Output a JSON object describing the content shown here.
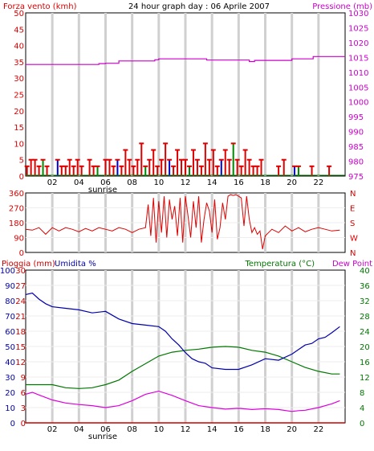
{
  "colors": {
    "wind": "#dd0000",
    "wind_alt_green": "#008800",
    "wind_alt_blue": "#0000cc",
    "pressure": "#cc00cc",
    "direction": "#dd0000",
    "humidity": "#0000aa",
    "temperature": "#007700",
    "dewpoint": "#dd00dd",
    "rain": "#cc0000",
    "grid": "#d0d0d0",
    "frame": "#000000"
  },
  "chart_data": [
    {
      "type": "bar+line",
      "title": "24 hour graph day : 06 Aprile 2007",
      "left_label": "Forza vento (kmh)",
      "right_label": "Pressione (mb)",
      "x_ticks": [
        "02",
        "04",
        "06",
        "08",
        "10",
        "12",
        "14",
        "16",
        "18",
        "20",
        "22"
      ],
      "x_marker": "sunrise",
      "x_range": [
        0,
        24
      ],
      "ylim_left": [
        0,
        50
      ],
      "ylim_right": [
        975,
        1030
      ],
      "left_ticks": [
        "0",
        "5",
        "10",
        "15",
        "20",
        "25",
        "30",
        "35",
        "40",
        "45",
        "50"
      ],
      "right_ticks": [
        "975",
        "980",
        "985",
        "990",
        "995",
        "1000",
        "1005",
        "1010",
        "1015",
        "1020",
        "1025",
        "1030"
      ],
      "pressure_series": {
        "x": [
          0,
          5.5,
          5.5,
          6.0,
          6.0,
          7.0,
          7.0,
          9.7,
          9.7,
          10.0,
          10.0,
          13.6,
          13.6,
          16.8,
          16.8,
          17.2,
          17.2,
          20.0,
          20.0,
          21.6,
          21.6,
          24.0
        ],
        "y": [
          1012.6,
          1012.6,
          1012.9,
          1012.9,
          1013.0,
          1013.0,
          1013.8,
          1013.8,
          1014.2,
          1014.2,
          1014.5,
          1014.5,
          1014.1,
          1014.1,
          1013.6,
          1013.6,
          1014.0,
          1014.0,
          1014.5,
          1014.5,
          1015.3,
          1015.3
        ]
      },
      "wind_speed": {
        "x": [
          0.1,
          0.4,
          0.7,
          1.0,
          1.3,
          1.6,
          2.4,
          2.7,
          3.0,
          3.3,
          3.6,
          3.9,
          4.2,
          4.8,
          5.1,
          5.4,
          6.0,
          6.3,
          6.6,
          6.9,
          7.2,
          7.5,
          7.8,
          8.1,
          8.4,
          8.7,
          9.0,
          9.3,
          9.6,
          9.9,
          10.2,
          10.5,
          10.8,
          11.1,
          11.4,
          11.7,
          12.0,
          12.3,
          12.6,
          12.9,
          13.2,
          13.5,
          13.8,
          14.1,
          14.4,
          14.7,
          15.0,
          15.3,
          15.6,
          15.9,
          16.2,
          16.5,
          16.8,
          17.1,
          17.4,
          17.7,
          19.0,
          19.4,
          20.2,
          20.5,
          21.5,
          22.8
        ],
        "y": [
          3,
          5,
          5,
          3,
          5,
          3,
          5,
          3,
          3,
          5,
          3,
          5,
          3,
          5,
          3,
          3,
          5,
          5,
          3,
          5,
          3,
          8,
          5,
          3,
          5,
          10,
          3,
          5,
          8,
          3,
          5,
          10,
          5,
          3,
          8,
          5,
          5,
          3,
          8,
          5,
          3,
          10,
          5,
          8,
          3,
          5,
          8,
          5,
          10,
          5,
          3,
          8,
          5,
          3,
          3,
          5,
          3,
          5,
          3,
          3,
          3,
          3
        ]
      }
    },
    {
      "type": "line",
      "left_label": "",
      "right_label": "N W S E N",
      "right_ticks": [
        "N",
        "W",
        "S",
        "E",
        "N"
      ],
      "left_ticks": [
        "0",
        "90",
        "180",
        "270",
        "360"
      ],
      "x_ticks": [
        "02",
        "04",
        "06",
        "08",
        "10",
        "12",
        "14",
        "16",
        "18",
        "20",
        "22"
      ],
      "ylim": [
        0,
        360
      ],
      "x_range": [
        0,
        24
      ],
      "direction": {
        "x": [
          0,
          0.5,
          1.0,
          1.5,
          2.0,
          2.5,
          3.0,
          3.5,
          4.0,
          4.5,
          5.0,
          5.5,
          6.0,
          6.5,
          7.0,
          7.5,
          8.0,
          8.5,
          9.0,
          9.2,
          9.4,
          9.6,
          9.8,
          10.0,
          10.2,
          10.4,
          10.6,
          10.8,
          11.0,
          11.2,
          11.4,
          11.6,
          11.8,
          12.0,
          12.2,
          12.4,
          12.6,
          12.8,
          13.0,
          13.2,
          13.4,
          13.6,
          13.8,
          14.0,
          14.2,
          14.4,
          14.6,
          14.8,
          15.0,
          15.2,
          15.4,
          15.6,
          15.8,
          16.0,
          16.2,
          16.4,
          16.6,
          16.8,
          17.0,
          17.2,
          17.4,
          17.6,
          17.8,
          18.0,
          18.5,
          19.0,
          19.5,
          20.0,
          20.5,
          21.0,
          21.5,
          22.0,
          22.5,
          23.0,
          23.6
        ],
        "y": [
          140,
          135,
          150,
          110,
          150,
          130,
          150,
          140,
          125,
          145,
          130,
          150,
          140,
          130,
          150,
          140,
          120,
          140,
          150,
          290,
          100,
          330,
          60,
          310,
          120,
          340,
          90,
          320,
          200,
          280,
          100,
          330,
          60,
          340,
          220,
          90,
          310,
          150,
          340,
          60,
          200,
          300,
          250,
          120,
          320,
          80,
          150,
          300,
          200,
          340,
          350,
          345,
          350,
          340,
          330,
          160,
          340,
          200,
          120,
          150,
          110,
          130,
          20,
          100,
          140,
          120,
          160,
          130,
          150,
          125,
          140,
          150,
          140,
          130,
          135
        ]
      }
    },
    {
      "type": "line",
      "left_label": "Pioggia (mm) Umidita %",
      "left_label_rain": "Pioggia (mm)",
      "left_label_hum": "Umidita %",
      "right_label_temp": "Temperatura (°C)",
      "right_label_dew": "Dew Point",
      "x_ticks": [
        "02",
        "04",
        "06",
        "08",
        "10",
        "12",
        "14",
        "16",
        "18",
        "20",
        "22"
      ],
      "x_marker": "sunrise",
      "x_range": [
        0,
        24
      ],
      "rain_ticks": [
        "0",
        "3",
        "6",
        "9",
        "12",
        "15",
        "18",
        "21",
        "24",
        "27",
        "30"
      ],
      "hum_ticks": [
        "0",
        "10",
        "20",
        "30",
        "40",
        "50",
        "60",
        "70",
        "80",
        "90",
        "100"
      ],
      "temp_ticks": [
        "0",
        "4",
        "8",
        "12",
        "16",
        "20",
        "24",
        "28",
        "32",
        "36",
        "40"
      ],
      "ylim_humidity": [
        0,
        100
      ],
      "ylim_temperature": [
        0,
        40
      ],
      "humidity": {
        "x": [
          0,
          0.5,
          1.0,
          1.5,
          2.0,
          3.0,
          4.0,
          5.0,
          6.0,
          7.0,
          8.0,
          9.0,
          10.0,
          10.5,
          11.0,
          11.5,
          12.0,
          12.5,
          13.0,
          13.5,
          14.0,
          15.0,
          16.0,
          17.0,
          18.0,
          19.0,
          20.0,
          20.5,
          21.0,
          21.5,
          22.0,
          22.5,
          23.0,
          23.6
        ],
        "y": [
          84,
          85,
          81,
          78,
          76,
          75,
          74,
          72,
          73,
          68,
          65,
          64,
          63,
          60,
          55,
          51,
          46,
          42,
          40,
          39,
          36,
          35,
          35,
          38,
          42,
          41,
          45,
          48,
          51,
          52,
          55,
          56,
          59,
          63
        ]
      },
      "temperature": {
        "x": [
          0,
          1.0,
          2.0,
          3.0,
          4.0,
          5.0,
          6.0,
          7.0,
          8.0,
          9.0,
          10.0,
          11.0,
          12.0,
          13.0,
          14.0,
          15.0,
          16.0,
          17.0,
          18.0,
          19.0,
          20.0,
          21.0,
          22.0,
          23.0,
          23.6
        ],
        "y": [
          10.0,
          10.0,
          10.0,
          9.2,
          9.0,
          9.2,
          10.0,
          11.2,
          13.5,
          15.5,
          17.5,
          18.5,
          19.0,
          19.3,
          19.8,
          20.0,
          19.8,
          19.0,
          18.5,
          17.5,
          16.0,
          14.5,
          13.5,
          12.8,
          12.8
        ]
      },
      "dewpoint": {
        "x": [
          0,
          0.5,
          1.0,
          2.0,
          3.0,
          4.0,
          5.0,
          6.0,
          7.0,
          8.0,
          9.0,
          10.0,
          11.0,
          12.0,
          13.0,
          14.0,
          15.0,
          16.0,
          17.0,
          18.0,
          19.0,
          20.0,
          20.5,
          21.0,
          22.0,
          23.0,
          23.6
        ],
        "y": [
          7.5,
          8.0,
          7.3,
          6.0,
          5.2,
          4.8,
          4.5,
          4.0,
          4.5,
          5.8,
          7.5,
          8.3,
          7.2,
          5.8,
          4.5,
          4.0,
          3.6,
          3.8,
          3.5,
          3.7,
          3.5,
          3.0,
          3.2,
          3.3,
          4.0,
          5.0,
          5.8
        ]
      },
      "rain": {
        "x": [
          0,
          24
        ],
        "y": [
          0,
          0
        ]
      }
    }
  ]
}
